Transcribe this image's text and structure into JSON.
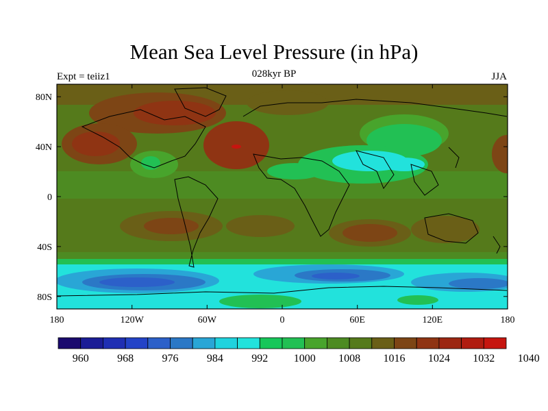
{
  "title": "Mean Sea Level Pressure (in hPa)",
  "subtitle": "028kyr BP",
  "left_label": "Expt = teiiz1",
  "right_label": "JJA",
  "map": {
    "lon_ticks": [
      "180",
      "120W",
      "60W",
      "0",
      "60E",
      "120E",
      "180"
    ],
    "lat_ticks": [
      "80N",
      "40N",
      "0",
      "40S",
      "80S"
    ]
  },
  "colorbar": {
    "colors": [
      "#1a0a6e",
      "#1b1d96",
      "#1f2fb3",
      "#2343c7",
      "#2c60c9",
      "#2b78c6",
      "#29a6d6",
      "#1fd3de",
      "#22e2dc",
      "#17c75a",
      "#22c054",
      "#48a42c",
      "#4d8b22",
      "#557a1b",
      "#6a5f17",
      "#7d4515",
      "#8f3413",
      "#9c2712",
      "#b01c10",
      "#c6150f"
    ],
    "labels": [
      "960",
      "968",
      "976",
      "984",
      "992",
      "1000",
      "1008",
      "1016",
      "1024",
      "1032",
      "1040"
    ]
  }
}
